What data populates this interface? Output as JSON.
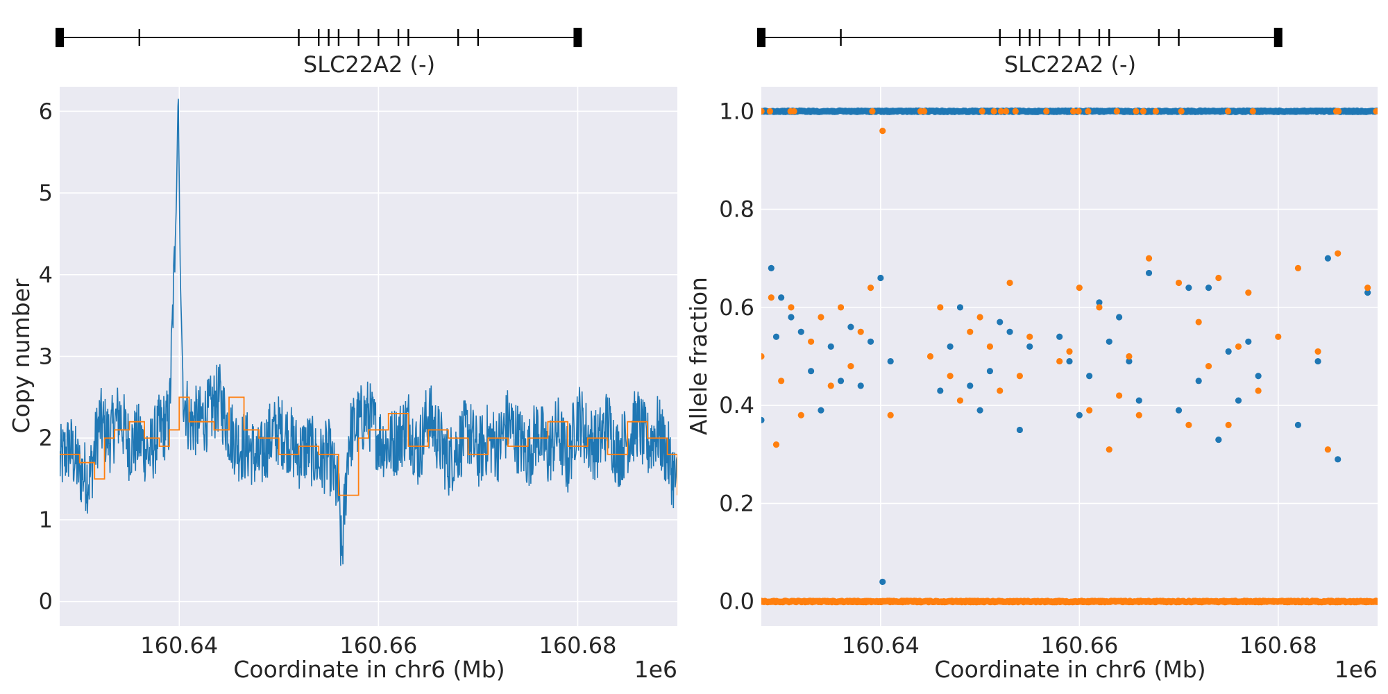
{
  "chart_data": [
    {
      "type": "line",
      "gene_track": {
        "label": "SLC22A2 (-)",
        "start": 160628000,
        "end": 160680000,
        "exons": [
          160628000,
          160636000,
          160652000,
          160654000,
          160655000,
          160656000,
          160658000,
          160660000,
          160662000,
          160663000,
          160668000,
          160670000,
          160680000
        ]
      },
      "xlabel": "Coordinate in chr6 (Mb)",
      "ylabel": "Copy number",
      "offset_label": "1e6",
      "xlim": [
        160628000,
        160690000
      ],
      "ylim": [
        -0.3,
        6.3
      ],
      "xticks": [
        160640000,
        160660000,
        160680000
      ],
      "xtick_labels": [
        "160.64",
        "160.66",
        "160.68"
      ],
      "yticks": [
        0,
        1,
        2,
        3,
        4,
        5,
        6
      ],
      "ytick_labels": [
        "0",
        "1",
        "2",
        "3",
        "4",
        "5",
        "6"
      ],
      "grid": true,
      "series": [
        {
          "role": "raw copy number",
          "color": "#1f77b4",
          "x": [
            160628000,
            160629000,
            160630000,
            160631000,
            160632000,
            160633000,
            160634000,
            160635000,
            160636000,
            160637000,
            160638000,
            160639000,
            160639700,
            160639900,
            160640100,
            160640400,
            160641000,
            160642000,
            160643000,
            160644000,
            160645000,
            160646000,
            160647000,
            160648000,
            160649000,
            160650000,
            160651000,
            160652000,
            160653000,
            160654000,
            160655000,
            160656000,
            160656300,
            160657000,
            160658000,
            160659000,
            160660000,
            160661000,
            160662000,
            160663000,
            160664000,
            160665000,
            160666000,
            160667000,
            160668000,
            160669000,
            160670000,
            160671000,
            160672000,
            160673000,
            160674000,
            160675000,
            160676000,
            160677000,
            160678000,
            160679000,
            160680000,
            160681000,
            160682000,
            160683000,
            160684000,
            160685000,
            160686000,
            160687000,
            160688000,
            160689000,
            160690000
          ],
          "y": [
            1.7,
            1.9,
            1.6,
            1.5,
            2.2,
            2.0,
            2.3,
            1.9,
            2.0,
            1.8,
            2.1,
            2.2,
            4.8,
            6.3,
            4.0,
            2.6,
            2.2,
            2.2,
            2.3,
            2.5,
            2.1,
            1.9,
            1.9,
            1.7,
            2.0,
            2.1,
            2.0,
            1.8,
            1.9,
            1.7,
            1.8,
            1.3,
            0.5,
            2.0,
            2.2,
            2.3,
            2.0,
            1.9,
            2.0,
            2.2,
            1.8,
            2.3,
            2.0,
            1.7,
            1.9,
            2.1,
            1.8,
            2.0,
            1.9,
            2.2,
            2.0,
            1.8,
            2.1,
            1.8,
            2.1,
            1.7,
            2.3,
            2.0,
            1.9,
            2.2,
            1.8,
            2.0,
            2.2,
            1.9,
            2.1,
            1.8,
            1.4
          ]
        },
        {
          "role": "smoothed copy number",
          "color": "#ff7f0e",
          "x": [
            160628000,
            160630000,
            160631500,
            160632500,
            160633500,
            160635000,
            160636500,
            160638000,
            160639000,
            160640000,
            160641000,
            160642500,
            160643500,
            160645000,
            160646500,
            160648000,
            160650000,
            160652000,
            160654000,
            160655500,
            160656000,
            160657000,
            160658000,
            160659000,
            160661000,
            160663000,
            160665000,
            160667000,
            160669000,
            160671000,
            160673000,
            160675000,
            160677000,
            160679000,
            160681000,
            160683000,
            160685000,
            160687000,
            160689000,
            160690000
          ],
          "y": [
            1.8,
            1.7,
            1.5,
            2.0,
            2.1,
            2.2,
            2.0,
            1.9,
            2.1,
            2.5,
            2.2,
            2.2,
            2.1,
            2.5,
            2.1,
            2.0,
            1.8,
            1.9,
            1.8,
            1.8,
            1.3,
            1.3,
            2.0,
            2.1,
            2.3,
            1.9,
            2.1,
            2.0,
            1.8,
            2.0,
            1.9,
            2.0,
            2.2,
            1.9,
            2.0,
            1.8,
            2.2,
            2.0,
            1.8,
            1.3
          ]
        }
      ]
    },
    {
      "type": "scatter",
      "gene_track": {
        "label": "SLC22A2 (-)",
        "start": 160628000,
        "end": 160680000,
        "exons": [
          160628000,
          160636000,
          160652000,
          160654000,
          160655000,
          160656000,
          160658000,
          160660000,
          160662000,
          160663000,
          160668000,
          160670000,
          160680000
        ]
      },
      "xlabel": "Coordinate in chr6 (Mb)",
      "ylabel": "Allele fraction",
      "offset_label": "1e6",
      "xlim": [
        160628000,
        160690000
      ],
      "ylim": [
        -0.05,
        1.05
      ],
      "xticks": [
        160640000,
        160660000,
        160680000
      ],
      "xtick_labels": [
        "160.64",
        "160.66",
        "160.68"
      ],
      "yticks": [
        0.0,
        0.2,
        0.4,
        0.6,
        0.8,
        1.0
      ],
      "ytick_labels": [
        "0.0",
        "0.2",
        "0.4",
        "0.6",
        "0.8",
        "1.0"
      ],
      "grid": true,
      "series": [
        {
          "role": "allele fraction A",
          "color": "#1f77b4",
          "x": [
            160628000,
            160629000,
            160629500,
            160630000,
            160631000,
            160632000,
            160633000,
            160634000,
            160635000,
            160636000,
            160637000,
            160638000,
            160639000,
            160640000,
            160641000,
            160646000,
            160647000,
            160648000,
            160649000,
            160650000,
            160651000,
            160652000,
            160653000,
            160654000,
            160655000,
            160658000,
            160659000,
            160660000,
            160661000,
            160662000,
            160663000,
            160664000,
            160665000,
            160666000,
            160667000,
            160670000,
            160671000,
            160672000,
            160673000,
            160674000,
            160675000,
            160676000,
            160677000,
            160678000,
            160682000,
            160684000,
            160685000,
            160686000,
            160689000,
            160640200
          ],
          "x_note": null,
          "y": [
            0.37,
            0.68,
            0.54,
            0.62,
            0.58,
            0.55,
            0.47,
            0.39,
            0.52,
            0.45,
            0.56,
            0.44,
            0.53,
            0.66,
            0.49,
            0.43,
            0.52,
            0.6,
            0.44,
            0.39,
            0.47,
            0.57,
            0.55,
            0.35,
            0.52,
            0.54,
            0.49,
            0.38,
            0.46,
            0.61,
            0.53,
            0.58,
            0.49,
            0.41,
            0.67,
            0.39,
            0.64,
            0.45,
            0.64,
            0.33,
            0.51,
            0.41,
            0.53,
            0.46,
            0.36,
            0.49,
            0.7,
            0.29,
            0.63,
            0.04
          ]
        },
        {
          "role": "allele fraction B",
          "color": "#ff7f0e",
          "x": [
            160628000,
            160629000,
            160629500,
            160630000,
            160631000,
            160632000,
            160633000,
            160634000,
            160635000,
            160636000,
            160637000,
            160638000,
            160639000,
            160640200,
            160641000,
            160645000,
            160646000,
            160647000,
            160648000,
            160649000,
            160650000,
            160651000,
            160652000,
            160653000,
            160654000,
            160655000,
            160658000,
            160659000,
            160660000,
            160661000,
            160662000,
            160663000,
            160664000,
            160665000,
            160666000,
            160667000,
            160670000,
            160671000,
            160672000,
            160673000,
            160674000,
            160675000,
            160676000,
            160677000,
            160678000,
            160680000,
            160682000,
            160684000,
            160685000,
            160686000,
            160689000
          ],
          "y": [
            0.5,
            0.62,
            0.32,
            0.45,
            0.6,
            0.38,
            0.53,
            0.58,
            0.44,
            0.6,
            0.48,
            0.55,
            0.64,
            0.96,
            0.38,
            0.5,
            0.6,
            0.46,
            0.41,
            0.55,
            0.58,
            0.52,
            0.43,
            0.65,
            0.46,
            0.54,
            0.49,
            0.51,
            0.64,
            0.39,
            0.6,
            0.31,
            0.42,
            0.5,
            0.38,
            0.7,
            0.65,
            0.36,
            0.57,
            0.48,
            0.66,
            0.36,
            0.52,
            0.63,
            0.43,
            0.54,
            0.68,
            0.51,
            0.31,
            0.71,
            0.64
          ]
        },
        {
          "role": "allele fraction A (homozygous band)",
          "color": "#1f77b4",
          "band_y": 1.0
        },
        {
          "role": "allele fraction B (homozygous band)",
          "color": "#ff7f0e",
          "band_y": 0.0
        }
      ]
    }
  ]
}
